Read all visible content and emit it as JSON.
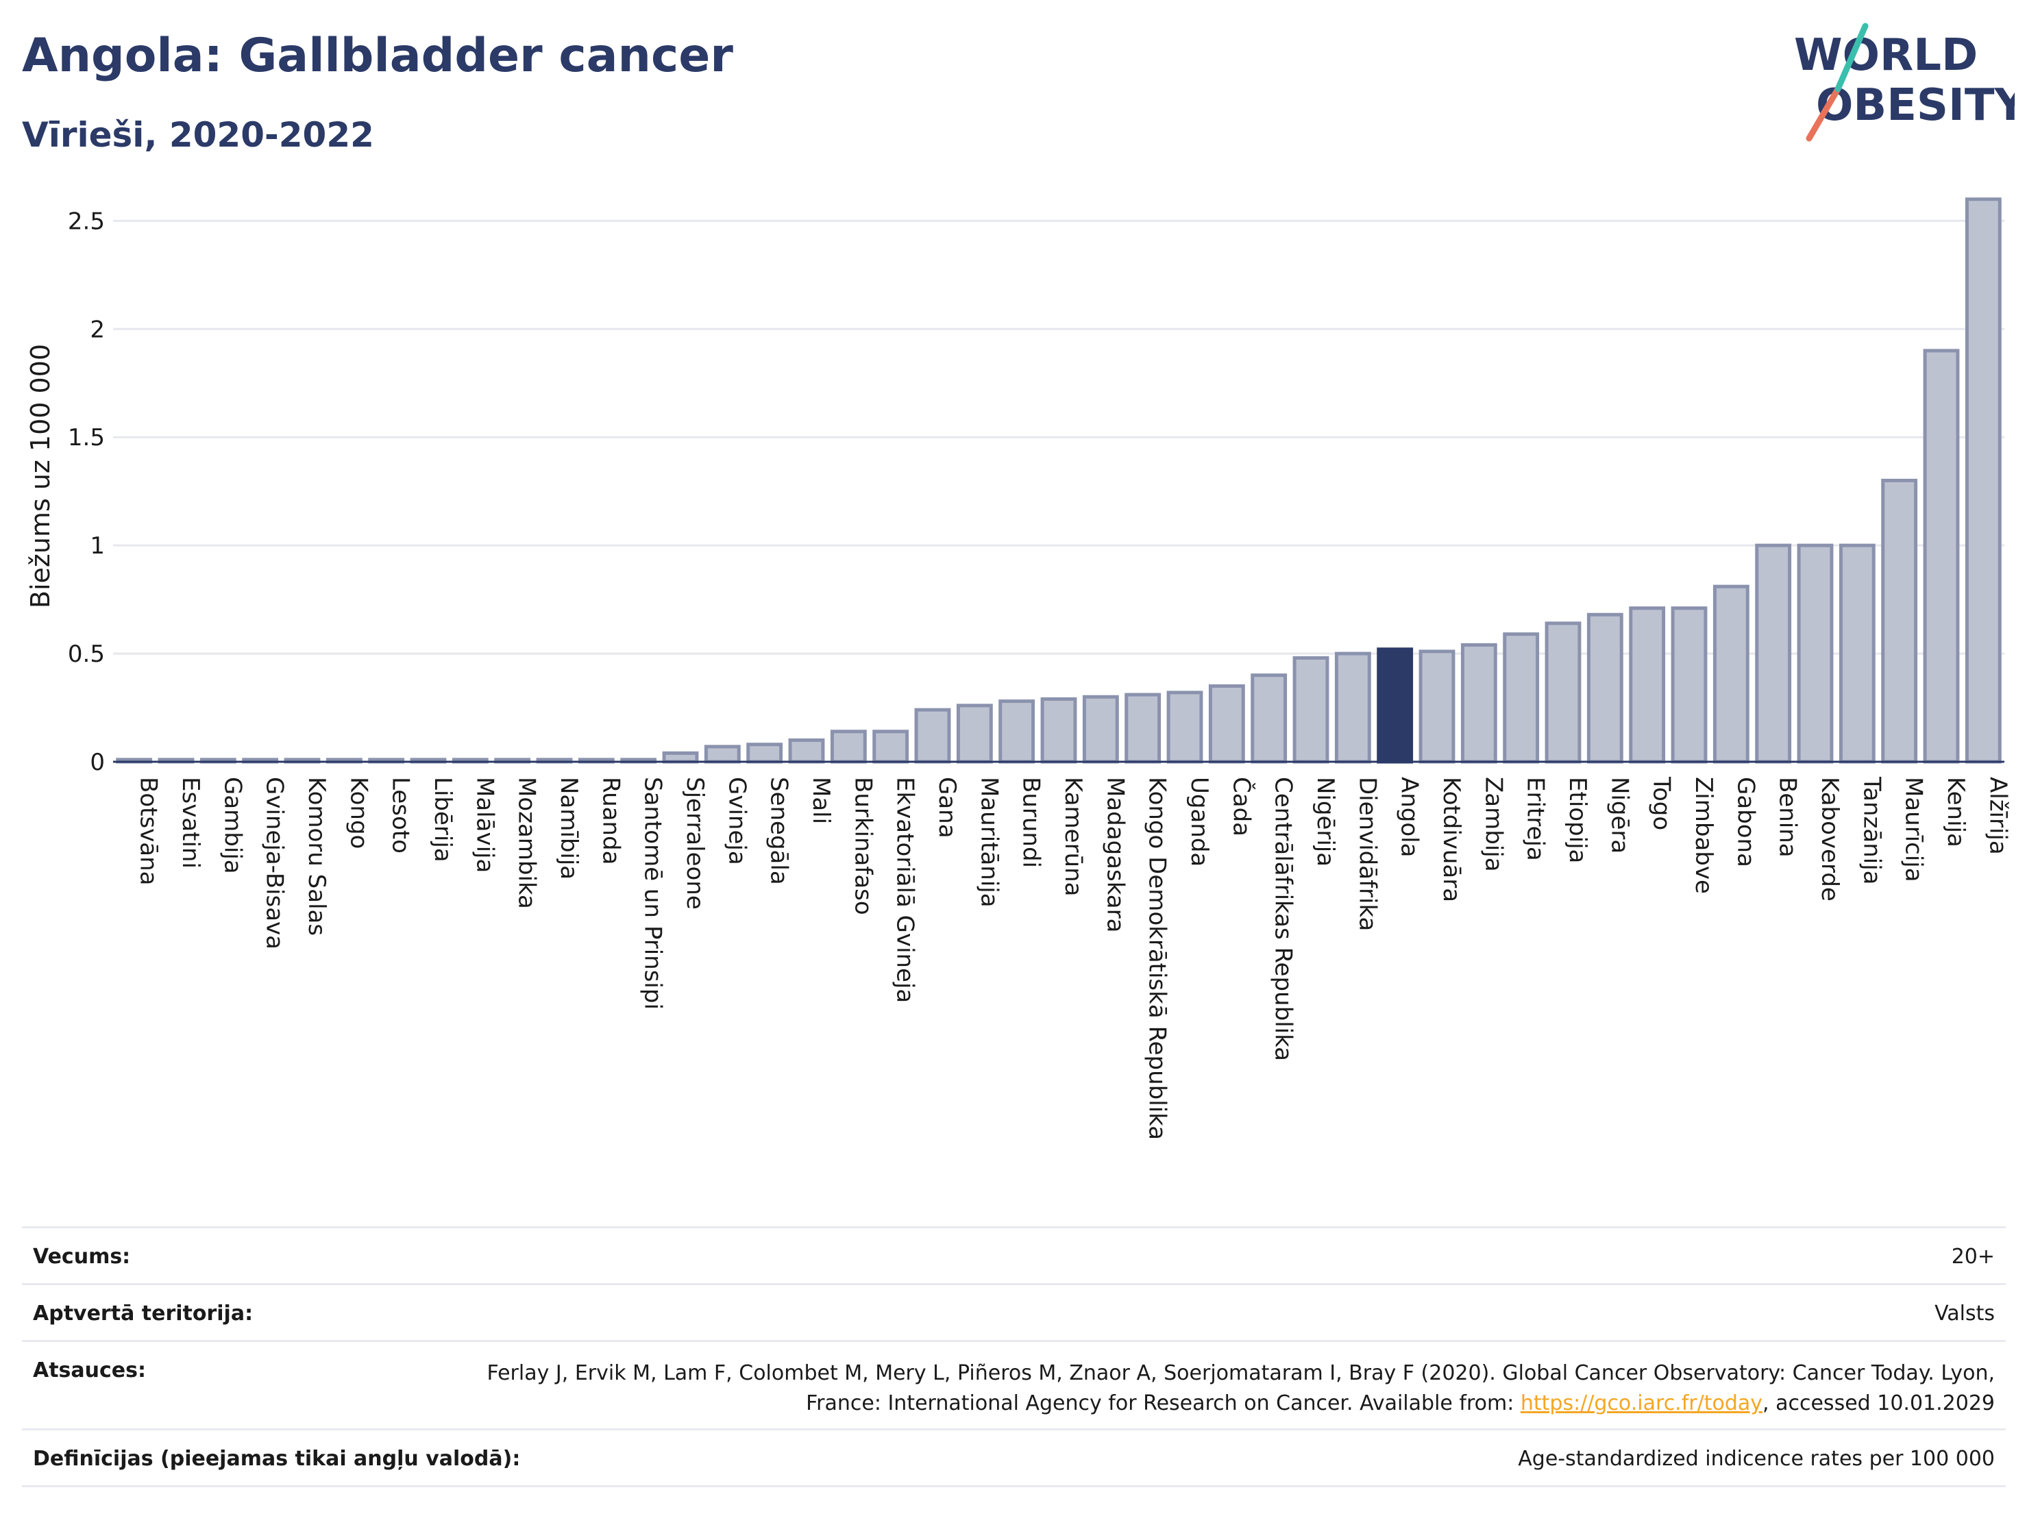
{
  "header": {
    "title": "Angola: Gallbladder cancer",
    "subtitle": "Vīrieši, 2020-2022"
  },
  "logo": {
    "line1": "WORLD",
    "line2": "OBESITY",
    "colors": {
      "text": "#2b3a67",
      "slash_teal": "#3bbfad",
      "slash_red": "#e8735a"
    }
  },
  "colors": {
    "bar": "#bdc2d1",
    "bar_stroke": "#8a92ad",
    "highlight": "#2b3a67",
    "grid": "#e6e8ee",
    "axis": "#2b3a67"
  },
  "chart_data": {
    "type": "bar",
    "ylabel": "Biežums uz 100 000",
    "xlabel": "",
    "ylim": [
      0,
      2.65
    ],
    "yticks": [
      0,
      0.5,
      1,
      1.5,
      2,
      2.5
    ],
    "ytick_labels": [
      "0",
      "0.5",
      "1",
      "1.5",
      "2",
      "2.5"
    ],
    "highlight": "Angola",
    "grid": true,
    "categories": [
      "Botsvāna",
      "Esvatini",
      "Gambija",
      "Gvineja-Bisava",
      "Komoru Salas",
      "Kongo",
      "Lesoto",
      "Libērija",
      "Malāvija",
      "Mozambika",
      "Namībija",
      "Ruanda",
      "Santomē un Prinsipi",
      "Sjerraleone",
      "Gvineja",
      "Senegāla",
      "Mali",
      "Burkinafaso",
      "Ekvatoriālā Gvineja",
      "Gana",
      "Mauritānija",
      "Burundi",
      "Kamerūna",
      "Madagaskara",
      "Kongo Demokrātiskā Republika",
      "Uganda",
      "Čada",
      "Centrālāfrikas Republika",
      "Nigērija",
      "Dienvidāfrika",
      "Angola",
      "Kotdivuāra",
      "Zambija",
      "Eritreja",
      "Etiopija",
      "Nigēra",
      "Togo",
      "Zimbabve",
      "Gabona",
      "Benina",
      "Kaboverde",
      "Tanzānija",
      "Maurīcija",
      "Kenija",
      "Alžīrija"
    ],
    "values": [
      0.01,
      0.01,
      0.01,
      0.01,
      0.01,
      0.01,
      0.01,
      0.01,
      0.01,
      0.01,
      0.01,
      0.01,
      0.01,
      0.04,
      0.07,
      0.08,
      0.1,
      0.14,
      0.14,
      0.24,
      0.26,
      0.28,
      0.29,
      0.3,
      0.31,
      0.32,
      0.35,
      0.4,
      0.48,
      0.5,
      0.52,
      0.51,
      0.54,
      0.59,
      0.64,
      0.68,
      0.71,
      0.71,
      0.81,
      1.0,
      1.0,
      1.0,
      1.3,
      1.9,
      2.6
    ]
  },
  "info": {
    "age_label": "Vecums:",
    "age_value": "20+",
    "coverage_label": "Aptvertā teritorija:",
    "coverage_value": "Valsts",
    "refs_label": "Atsauces:",
    "refs_text_1": "Ferlay J, Ervik M, Lam F, Colombet M, Mery L, Piñeros M, Znaor A, Soerjomataram I, Bray F (2020). Global Cancer Observatory: Cancer Today. Lyon, France: International Agency for Research on Cancer. Available from: ",
    "refs_link": "https://gco.iarc.fr/today",
    "refs_text_2": ", accessed 10.01.2029",
    "def_label": "Definīcijas (pieejamas tikai angļu valodā):",
    "def_value": "Age-standardized indicence rates per 100 000"
  }
}
